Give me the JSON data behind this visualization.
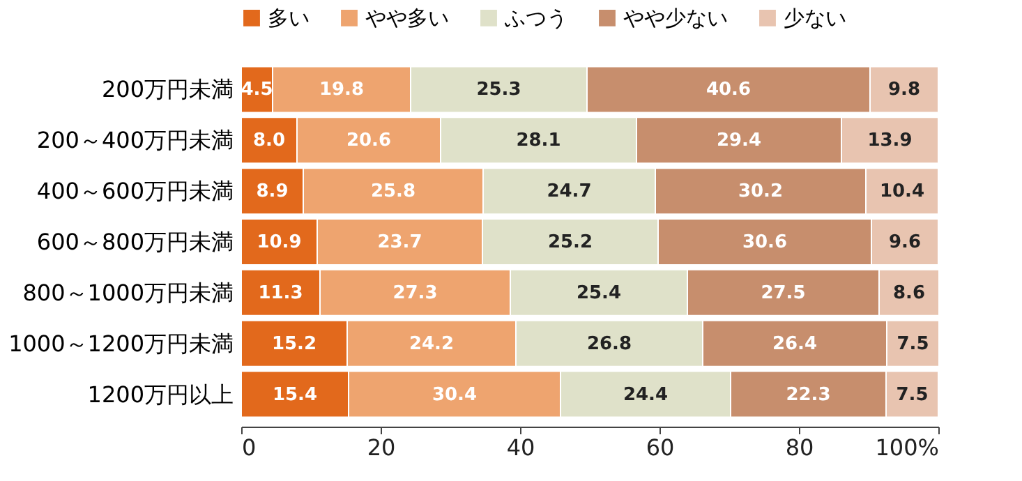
{
  "chart_data": {
    "type": "bar",
    "orientation": "horizontal",
    "stacked": true,
    "legend": "top",
    "grid": false,
    "categories": [
      "200万円未満",
      "200～400万円未満",
      "400～600万円未満",
      "600～800万円未満",
      "800～1000万円未満",
      "1000～1200万円未満",
      "1200万円以上"
    ],
    "series": [
      {
        "name": "多い",
        "color": "#e2691c",
        "values": [
          4.5,
          8.0,
          8.9,
          10.9,
          11.3,
          15.2,
          15.4
        ],
        "value_labels": [
          "4.5",
          "8.0",
          "8.9",
          "10.9",
          "11.3",
          "15.2",
          "15.4"
        ]
      },
      {
        "name": "やや多い",
        "color": "#eea46f",
        "values": [
          19.8,
          20.6,
          25.8,
          23.7,
          27.3,
          24.2,
          30.4
        ],
        "value_labels": [
          "19.8",
          "20.6",
          "25.8",
          "23.7",
          "27.3",
          "24.2",
          "30.4"
        ]
      },
      {
        "name": "ふつう",
        "color": "#dfe1c9",
        "values": [
          25.3,
          28.1,
          24.7,
          25.2,
          25.4,
          26.8,
          24.4
        ],
        "value_labels": [
          "25.3",
          "28.1",
          "24.7",
          "25.2",
          "25.4",
          "26.8",
          "24.4"
        ]
      },
      {
        "name": "やや少ない",
        "color": "#c78e6d",
        "values": [
          40.6,
          29.4,
          30.2,
          30.6,
          27.5,
          26.4,
          22.3
        ],
        "value_labels": [
          "40.6",
          "29.4",
          "30.2",
          "30.6",
          "27.5",
          "26.4",
          "22.3"
        ]
      },
      {
        "name": "少ない",
        "color": "#e8c4b0",
        "values": [
          9.8,
          13.9,
          10.4,
          9.6,
          8.6,
          7.5,
          7.5
        ],
        "value_labels": [
          "9.8",
          "13.9",
          "10.4",
          "9.6",
          "8.6",
          "7.5",
          "7.5"
        ]
      }
    ],
    "xlim": [
      0,
      100
    ],
    "xticks": [
      0,
      20,
      40,
      60,
      80,
      {
        "value": 100,
        "label": "100%"
      }
    ]
  }
}
